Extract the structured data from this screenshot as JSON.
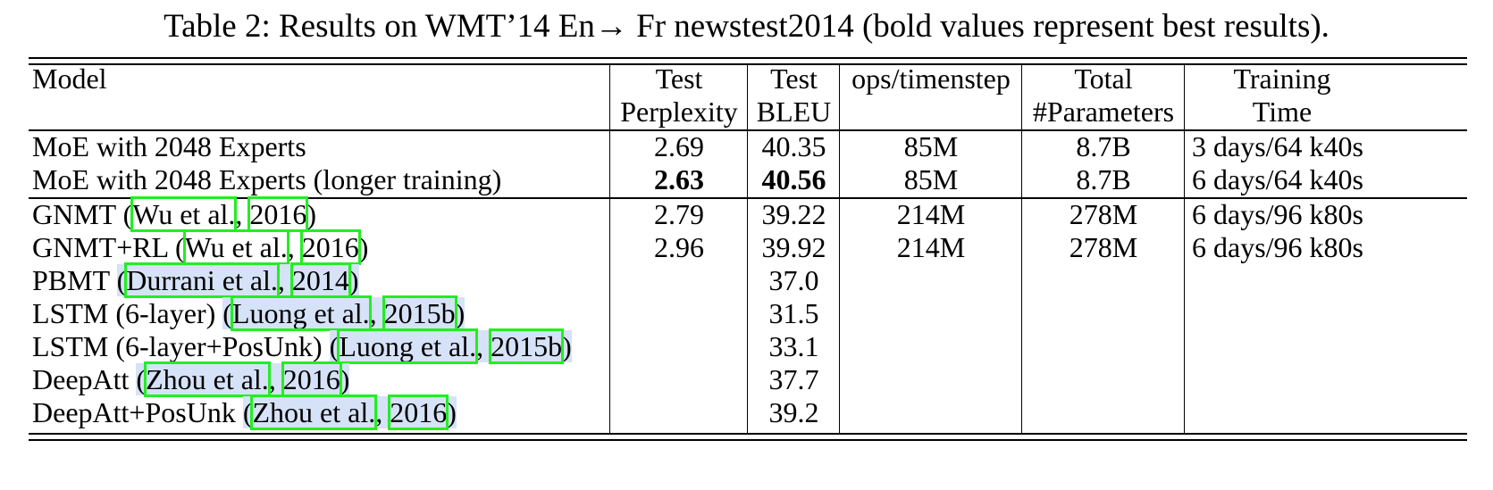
{
  "caption": "Table 2: Results on WMT’14 En→ Fr newstest2014 (bold values represent best results).",
  "header": {
    "model": "Model",
    "perplexity_1": "Test",
    "perplexity_2": "Perplexity",
    "bleu_1": "Test",
    "bleu_2": "BLEU",
    "ops": "ops/timenstep",
    "params_1": "Total",
    "params_2": "#Parameters",
    "time_1": "Training",
    "time_2": "Time"
  },
  "rows": [
    {
      "model": "MoE with 2048 Experts",
      "perplexity": "2.69",
      "bleu": "40.35",
      "ops": "85M",
      "params": "8.7B",
      "time": "3 days/64 k40s"
    },
    {
      "model": "MoE with 2048 Experts (longer training)",
      "perplexity": "2.63",
      "bleu": "40.56",
      "ops": "85M",
      "params": "8.7B",
      "time": "6 days/64 k40s"
    },
    {
      "model": "GNMT",
      "cite_author": "Wu et al.",
      "cite_year": "2016",
      "perplexity": "2.79",
      "bleu": "39.22",
      "ops": "214M",
      "params": "278M",
      "time": "6 days/96 k80s"
    },
    {
      "model": "GNMT+RL",
      "cite_author": "Wu et al.",
      "cite_year": "2016",
      "perplexity": "2.96",
      "bleu": "39.92",
      "ops": "214M",
      "params": "278M",
      "time": "6 days/96 k80s"
    },
    {
      "model": "PBMT",
      "cite_author": "Durrani et al.",
      "cite_year": "2014",
      "bleu": "37.0"
    },
    {
      "model": "LSTM (6-layer)",
      "cite_author": "Luong et al.",
      "cite_year": "2015b",
      "bleu": "31.5"
    },
    {
      "model": "LSTM (6-layer+PosUnk)",
      "cite_author": "Luong et al.",
      "cite_year": "2015b",
      "bleu": "33.1"
    },
    {
      "model": "DeepAtt",
      "cite_author": "Zhou et al.",
      "cite_year": "2016",
      "bleu": "37.7"
    },
    {
      "model": "DeepAtt+PosUnk",
      "cite_author": "Zhou et al.",
      "cite_year": "2016",
      "bleu": "39.2"
    }
  ],
  "colors": {
    "citation_bg": "#d6e2f7",
    "highlight_box": "#22ee22"
  }
}
